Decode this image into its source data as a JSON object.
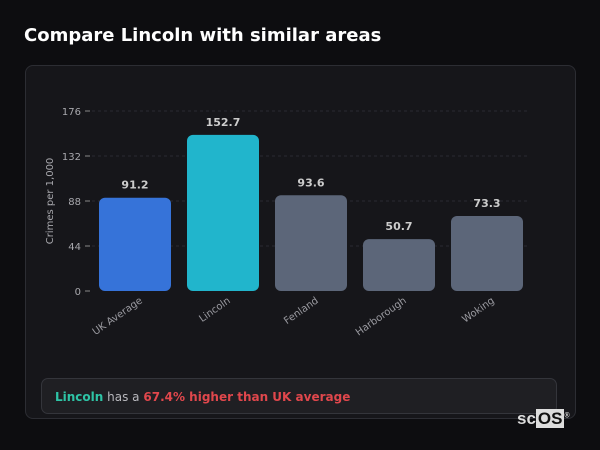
{
  "title": "Compare Lincoln with similar areas",
  "chart_data": {
    "type": "bar",
    "categories": [
      "UK Average",
      "Lincoln",
      "Fenland",
      "Harborough",
      "Woking"
    ],
    "values": [
      91.2,
      152.7,
      93.6,
      50.7,
      73.3
    ],
    "data_labels": [
      "91.2",
      "152.7",
      "93.6",
      "50.7",
      "73.3"
    ],
    "colors": [
      "#3673d9",
      "#21b5cc",
      "#5c6679",
      "#5c6679",
      "#5c6679"
    ],
    "ylabel": "Crimes per 1,000",
    "xlabel": "",
    "ylim": [
      0,
      176
    ],
    "yticks": [
      0,
      44,
      88,
      132,
      176
    ],
    "grid": true
  },
  "footer": {
    "area": "Lincoln",
    "middle": "has a",
    "comparison": "67.4% higher than UK average",
    "area_color": "#2ec4a6",
    "comparison_color": "#e0474c"
  },
  "logo": {
    "text_a": "sc",
    "text_b": "OS",
    "mark": "®"
  }
}
